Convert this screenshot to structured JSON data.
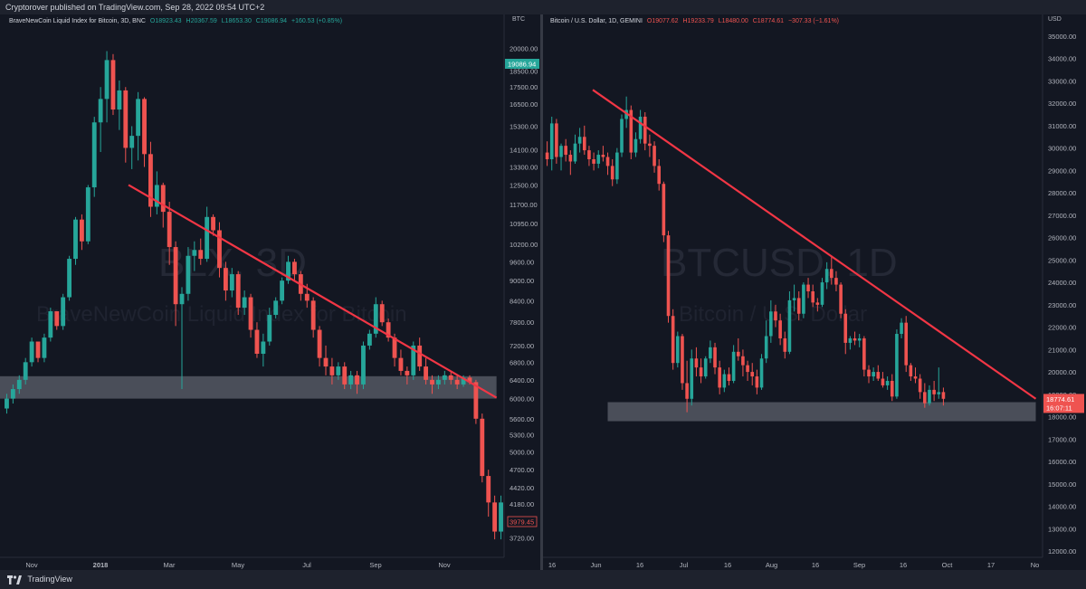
{
  "header": {
    "publisher_text": "Cryptorover published on TradingView.com, Sep 28, 2022 09:54 UTC+2"
  },
  "footer": {
    "brand": "TradingView"
  },
  "colors": {
    "background": "#131722",
    "up": "#26a69a",
    "down": "#ef5350",
    "trendline": "#f23645",
    "zone": "#787b86"
  },
  "left": {
    "symbol": "BraveNewCoin Liquid Index for Bitcoin, 3D, BNC",
    "o": "O18923.43",
    "h": "H20367.59",
    "l": "L18653.30",
    "c": "C19086.94",
    "chg": "+160.53 (+0.85%)",
    "currency": "BTC",
    "watermark": "BLX, 3D",
    "watermark_sub": "BraveNewCoin Liquid Index for Bitcoin",
    "price_tag": "19086.94",
    "low_tag": "3979.45"
  },
  "right": {
    "symbol": "Bitcoin / U.S. Dollar, 1D, GEMINI",
    "o": "O19077.62",
    "h": "H19233.79",
    "l": "L18480.00",
    "c": "C18774.61",
    "chg": "−307.33 (−1.61%)",
    "currency": "USD",
    "watermark": "BTCUSD, 1D",
    "watermark_sub": "Bitcoin / U.S. Dollar",
    "price_tag": "18774.61",
    "countdown": "16:07:11"
  },
  "chart_data": [
    {
      "type": "candlestick",
      "title": "BraveNewCoin Liquid Index for Bitcoin, 3D, BNC",
      "y_scale": "log",
      "ylim": [
        3500,
        21500
      ],
      "y_ticks": [
        "20000.00",
        "18500.00",
        "17500.00",
        "16500.00",
        "15300.00",
        "14100.00",
        "13300.00",
        "12500.00",
        "11700.00",
        "10950.00",
        "10200.00",
        "9600.00",
        "9000.00",
        "8400.00",
        "7800.00",
        "7200.00",
        "6800.00",
        "6400.00",
        "6000.00",
        "5600.00",
        "5300.00",
        "5000.00",
        "4700.00",
        "4420.00",
        "4180.00",
        "3720.00"
      ],
      "x_ticks": [
        "Nov",
        "2018",
        "Mar",
        "May",
        "Jul",
        "Sep",
        "Nov"
      ],
      "annotations": [
        {
          "type": "trendline",
          "from": [
            0.255,
            12500
          ],
          "to": [
            0.985,
            6020
          ]
        },
        {
          "type": "support_zone",
          "from_frac": 0.0,
          "to_frac": 0.985,
          "low": 6000,
          "high": 6480
        }
      ],
      "candles": [
        [
          5800,
          6100,
          5700,
          6000
        ],
        [
          6000,
          6300,
          5900,
          6200
        ],
        [
          6200,
          6500,
          6100,
          6400
        ],
        [
          6400,
          6900,
          6300,
          6800
        ],
        [
          6800,
          7400,
          6700,
          7300
        ],
        [
          7300,
          7200,
          6800,
          6900
        ],
        [
          6900,
          7500,
          6800,
          7400
        ],
        [
          7400,
          8200,
          7300,
          8100
        ],
        [
          8100,
          8100,
          7600,
          7700
        ],
        [
          7700,
          8600,
          7600,
          8500
        ],
        [
          8500,
          9800,
          8400,
          9700
        ],
        [
          9700,
          11200,
          9500,
          11100
        ],
        [
          11100,
          11300,
          10000,
          10300
        ],
        [
          10300,
          12500,
          10200,
          12400
        ],
        [
          12400,
          15800,
          12000,
          15500
        ],
        [
          15500,
          17500,
          14000,
          16800
        ],
        [
          16800,
          19800,
          15500,
          19200
        ],
        [
          19200,
          19600,
          15900,
          16200
        ],
        [
          16200,
          17900,
          15100,
          17300
        ],
        [
          17300,
          17500,
          13500,
          14200
        ],
        [
          14200,
          15300,
          13200,
          14800
        ],
        [
          14800,
          17200,
          13600,
          16800
        ],
        [
          16800,
          16900,
          13300,
          13900
        ],
        [
          13900,
          14500,
          11200,
          11600
        ],
        [
          11600,
          13100,
          11300,
          12500
        ],
        [
          12500,
          12600,
          10800,
          11400
        ],
        [
          11400,
          11800,
          9500,
          10100
        ],
        [
          10100,
          10300,
          7700,
          8300
        ],
        [
          8300,
          8800,
          6200,
          8600
        ],
        [
          8600,
          10100,
          8400,
          9800
        ],
        [
          9800,
          10300,
          9300,
          10000
        ],
        [
          10000,
          10400,
          9500,
          9700
        ],
        [
          9700,
          11600,
          9600,
          11200
        ],
        [
          11200,
          11300,
          10500,
          10700
        ],
        [
          10700,
          11000,
          9100,
          9400
        ],
        [
          9400,
          9600,
          8400,
          8700
        ],
        [
          8700,
          9400,
          8500,
          9200
        ],
        [
          9200,
          9300,
          8000,
          8200
        ],
        [
          8200,
          8700,
          8000,
          8500
        ],
        [
          8500,
          8600,
          7400,
          7600
        ],
        [
          7600,
          7800,
          6900,
          7000
        ],
        [
          7000,
          7500,
          6700,
          7300
        ],
        [
          7300,
          8200,
          7200,
          8000
        ],
        [
          8000,
          8500,
          7900,
          8400
        ],
        [
          8400,
          9100,
          8300,
          9000
        ],
        [
          9000,
          9800,
          8900,
          9600
        ],
        [
          9600,
          9700,
          9000,
          9200
        ],
        [
          9200,
          9300,
          8400,
          8600
        ],
        [
          8600,
          8900,
          8200,
          8400
        ],
        [
          8400,
          8500,
          7400,
          7600
        ],
        [
          7600,
          7700,
          6700,
          6900
        ],
        [
          6900,
          7200,
          6500,
          6700
        ],
        [
          6700,
          6900,
          6300,
          6500
        ],
        [
          6500,
          6800,
          6400,
          6700
        ],
        [
          6700,
          6800,
          6200,
          6300
        ],
        [
          6300,
          6600,
          6200,
          6500
        ],
        [
          6500,
          6600,
          6100,
          6300
        ],
        [
          6300,
          7300,
          6200,
          7200
        ],
        [
          7200,
          7600,
          7100,
          7500
        ],
        [
          7500,
          8500,
          7400,
          8300
        ],
        [
          8300,
          8400,
          7700,
          7800
        ],
        [
          7800,
          7900,
          7300,
          7400
        ],
        [
          7400,
          7500,
          6700,
          6900
        ],
        [
          6900,
          7100,
          6500,
          6600
        ],
        [
          6600,
          6700,
          6300,
          6500
        ],
        [
          6500,
          7300,
          6400,
          7200
        ],
        [
          7200,
          7400,
          6600,
          6700
        ],
        [
          6700,
          6900,
          6300,
          6400
        ],
        [
          6400,
          6500,
          6100,
          6300
        ],
        [
          6300,
          6500,
          6200,
          6400
        ],
        [
          6400,
          6600,
          6300,
          6500
        ],
        [
          6500,
          6600,
          6300,
          6400
        ],
        [
          6400,
          6500,
          6200,
          6300
        ],
        [
          6300,
          6500,
          6250,
          6450
        ],
        [
          6450,
          6500,
          6300,
          6350
        ],
        [
          6350,
          6400,
          5500,
          5600
        ],
        [
          5600,
          5700,
          4500,
          4600
        ],
        [
          4600,
          4700,
          4000,
          4200
        ],
        [
          4200,
          4300,
          3700,
          3800
        ],
        [
          3800,
          4300,
          3700,
          4200
        ]
      ]
    },
    {
      "type": "candlestick",
      "title": "Bitcoin / U.S. Dollar, 1D, GEMINI",
      "y_scale": "linear",
      "ylim": [
        11800,
        35400
      ],
      "y_ticks": [
        "35000.00",
        "34000.00",
        "33000.00",
        "32000.00",
        "31000.00",
        "30000.00",
        "29000.00",
        "28000.00",
        "27000.00",
        "26000.00",
        "25000.00",
        "24000.00",
        "23000.00",
        "22000.00",
        "21000.00",
        "20000.00",
        "19000.00",
        "18000.00",
        "17000.00",
        "16000.00",
        "15000.00",
        "14000.00",
        "13000.00",
        "12000.00"
      ],
      "x_ticks": [
        "16",
        "Jun",
        "16",
        "Jul",
        "16",
        "Aug",
        "16",
        "Sep",
        "16",
        "Oct",
        "17",
        "No"
      ],
      "annotations": [
        {
          "type": "trendline",
          "from": [
            0.1,
            32600
          ],
          "to": [
            0.99,
            18800
          ]
        },
        {
          "type": "support_zone",
          "from_frac": 0.13,
          "to_frac": 0.99,
          "low": 17800,
          "high": 18650
        }
      ],
      "candles": [
        [
          29800,
          30300,
          29200,
          29500
        ],
        [
          29500,
          31400,
          29000,
          31100
        ],
        [
          31100,
          31300,
          29300,
          29600
        ],
        [
          29600,
          30200,
          29000,
          30100
        ],
        [
          30100,
          30400,
          29400,
          29700
        ],
        [
          29700,
          29900,
          28800,
          29400
        ],
        [
          29400,
          30600,
          29300,
          30200
        ],
        [
          30200,
          30900,
          29800,
          30500
        ],
        [
          30500,
          31000,
          29700,
          29900
        ],
        [
          29900,
          30100,
          29200,
          29500
        ],
        [
          29500,
          29800,
          29000,
          29300
        ],
        [
          29300,
          29900,
          29100,
          29700
        ],
        [
          29700,
          30100,
          29400,
          29600
        ],
        [
          29600,
          29800,
          28800,
          29200
        ],
        [
          29200,
          29500,
          28300,
          28600
        ],
        [
          28600,
          30000,
          28400,
          29800
        ],
        [
          29800,
          31500,
          29600,
          31300
        ],
        [
          31300,
          32300,
          30900,
          31700
        ],
        [
          31700,
          31900,
          29500,
          29800
        ],
        [
          29800,
          30700,
          29600,
          30400
        ],
        [
          30400,
          31700,
          30200,
          31400
        ],
        [
          31400,
          31600,
          29900,
          30200
        ],
        [
          30200,
          30600,
          29600,
          30100
        ],
        [
          30100,
          30300,
          28900,
          29200
        ],
        [
          29200,
          29500,
          28100,
          28400
        ],
        [
          28400,
          28500,
          25800,
          26100
        ],
        [
          26100,
          26300,
          22200,
          22500
        ],
        [
          22500,
          22800,
          20100,
          20400
        ],
        [
          20400,
          21800,
          20200,
          21600
        ],
        [
          21600,
          21700,
          19200,
          19500
        ],
        [
          19500,
          20500,
          18200,
          18800
        ],
        [
          18800,
          21000,
          18500,
          20600
        ],
        [
          20600,
          21100,
          19800,
          20200
        ],
        [
          20200,
          20600,
          19500,
          19800
        ],
        [
          19800,
          20700,
          19700,
          20600
        ],
        [
          20600,
          21400,
          20400,
          21100
        ],
        [
          21100,
          21300,
          19900,
          20200
        ],
        [
          20200,
          20500,
          19000,
          19300
        ],
        [
          19300,
          20100,
          19100,
          19900
        ],
        [
          19900,
          20200,
          19400,
          19600
        ],
        [
          19600,
          21200,
          19500,
          20900
        ],
        [
          20900,
          21500,
          20500,
          20700
        ],
        [
          20700,
          21000,
          19800,
          20300
        ],
        [
          20300,
          20500,
          19600,
          20000
        ],
        [
          20000,
          20400,
          19400,
          19800
        ],
        [
          19800,
          20100,
          19000,
          19300
        ],
        [
          19300,
          20800,
          19200,
          20600
        ],
        [
          20600,
          22300,
          20400,
          21600
        ],
        [
          21600,
          23200,
          21300,
          22700
        ],
        [
          22700,
          23000,
          22000,
          22300
        ],
        [
          22300,
          22600,
          21200,
          21500
        ],
        [
          21500,
          21800,
          20600,
          20900
        ],
        [
          20900,
          23600,
          20800,
          23200
        ],
        [
          23200,
          23900,
          22700,
          23300
        ],
        [
          23300,
          23600,
          22300,
          22600
        ],
        [
          22600,
          24000,
          22400,
          23900
        ],
        [
          23900,
          24200,
          23300,
          23600
        ],
        [
          23600,
          23900,
          22900,
          23100
        ],
        [
          23100,
          23300,
          22700,
          23000
        ],
        [
          23000,
          24200,
          22900,
          24000
        ],
        [
          24000,
          24900,
          23700,
          24600
        ],
        [
          24600,
          25200,
          23900,
          24200
        ],
        [
          24200,
          24500,
          23600,
          23900
        ],
        [
          23900,
          24000,
          22400,
          22600
        ],
        [
          22600,
          22800,
          20800,
          21300
        ],
        [
          21300,
          21600,
          21000,
          21500
        ],
        [
          21500,
          21800,
          21200,
          21400
        ],
        [
          21400,
          21700,
          21100,
          21500
        ],
        [
          21500,
          21600,
          19800,
          20100
        ],
        [
          20100,
          20300,
          19500,
          19800
        ],
        [
          19800,
          20200,
          19600,
          20000
        ],
        [
          20000,
          20300,
          19600,
          19700
        ],
        [
          19700,
          20000,
          19300,
          19400
        ],
        [
          19400,
          19800,
          19200,
          19600
        ],
        [
          19600,
          19900,
          18700,
          18900
        ],
        [
          18900,
          21900,
          18800,
          21700
        ],
        [
          21700,
          22400,
          21500,
          22200
        ],
        [
          22200,
          22500,
          20000,
          20300
        ],
        [
          20300,
          20400,
          19600,
          19800
        ],
        [
          19800,
          20200,
          19500,
          19700
        ],
        [
          19700,
          19900,
          18800,
          19100
        ],
        [
          19100,
          19500,
          18400,
          18600
        ],
        [
          18600,
          19400,
          18500,
          19200
        ],
        [
          19200,
          19600,
          18700,
          19000
        ],
        [
          19000,
          20200,
          18800,
          19100
        ],
        [
          19100,
          19300,
          18500,
          18800
        ]
      ]
    }
  ]
}
